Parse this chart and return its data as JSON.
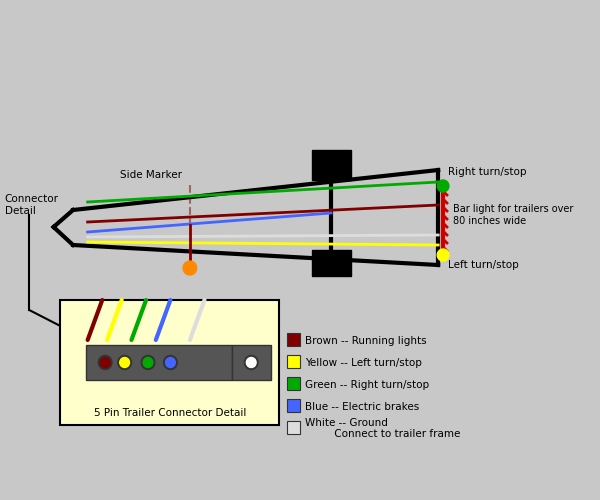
{
  "bg_color": "#c8c8c8",
  "trailer_outline_color": "#000000",
  "wire_colors": {
    "brown": "#800000",
    "yellow": "#ffff00",
    "green": "#00aa00",
    "blue": "#4466ff",
    "white": "#dddddd",
    "red": "#cc0000",
    "orange": "#ff8800",
    "black": "#000000"
  },
  "connector_box_bg": "#ffffcc",
  "connector_box_border": "#000000",
  "legend_items": [
    {
      "color": "#800000",
      "label": "Brown -- Running lights"
    },
    {
      "color": "#ffff00",
      "label": "Yellow -- Left turn/stop"
    },
    {
      "color": "#00aa00",
      "label": "Green -- Right turn/stop"
    },
    {
      "color": "#4466ff",
      "label": "Blue -- Electric brakes"
    },
    {
      "color": "#dddddd",
      "label": "White -- Ground\n         Connect to trailer frame"
    }
  ],
  "title_fontsize": 9,
  "label_fontsize": 8,
  "small_fontsize": 7.5
}
